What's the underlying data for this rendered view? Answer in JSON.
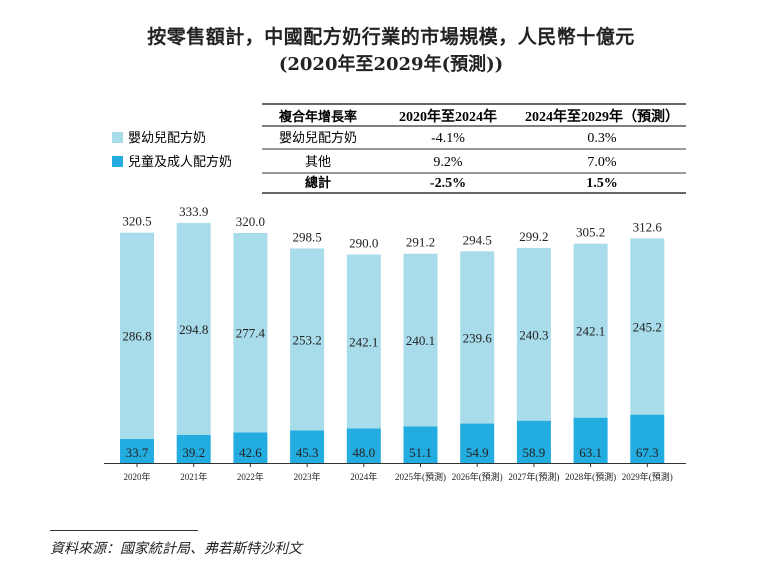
{
  "title_line1": "按零售額計，中國配方奶行業的市場規模，人民幣十億元",
  "title_line2": "(2020年至2029年(預測))",
  "legend": [
    {
      "label": "嬰幼兒配方奶",
      "color": "#a8dcea"
    },
    {
      "label": "兒童及成人配方奶",
      "color": "#23ace0"
    }
  ],
  "cagr_table": {
    "headers": [
      "複合年增長率",
      "2020年至2024年",
      "2024年至2029年（預測）"
    ],
    "rows": [
      {
        "label": "嬰幼兒配方奶",
        "v1": "-4.1%",
        "v2": "0.3%",
        "bold": false
      },
      {
        "label": "其他",
        "v1": "9.2%",
        "v2": "7.0%",
        "bold": false
      },
      {
        "label": "總計",
        "v1": "-2.5%",
        "v2": "1.5%",
        "bold": true
      }
    ]
  },
  "chart_data": {
    "type": "bar",
    "stacked": true,
    "unit": "人民幣十億元",
    "categories": [
      "2020年",
      "2021年",
      "2022年",
      "2023年",
      "2024年",
      "2025年(預測)",
      "2026年(預測)",
      "2027年(預測)",
      "2028年(預測)",
      "2029年(預測)"
    ],
    "series": [
      {
        "name": "兒童及成人配方奶",
        "color": "#23ace0",
        "values": [
          33.7,
          39.2,
          42.6,
          45.3,
          48.0,
          51.1,
          54.9,
          58.9,
          63.1,
          67.3
        ]
      },
      {
        "name": "嬰幼兒配方奶",
        "color": "#a8dcea",
        "values": [
          286.8,
          294.8,
          277.4,
          253.2,
          242.1,
          240.1,
          239.6,
          240.3,
          242.1,
          245.2
        ]
      }
    ],
    "totals": [
      320.5,
      333.9,
      320.0,
      298.5,
      290.0,
      291.2,
      294.5,
      299.2,
      305.2,
      312.6
    ]
  },
  "source": "資料來源：國家統計局、弗若斯特沙利文"
}
